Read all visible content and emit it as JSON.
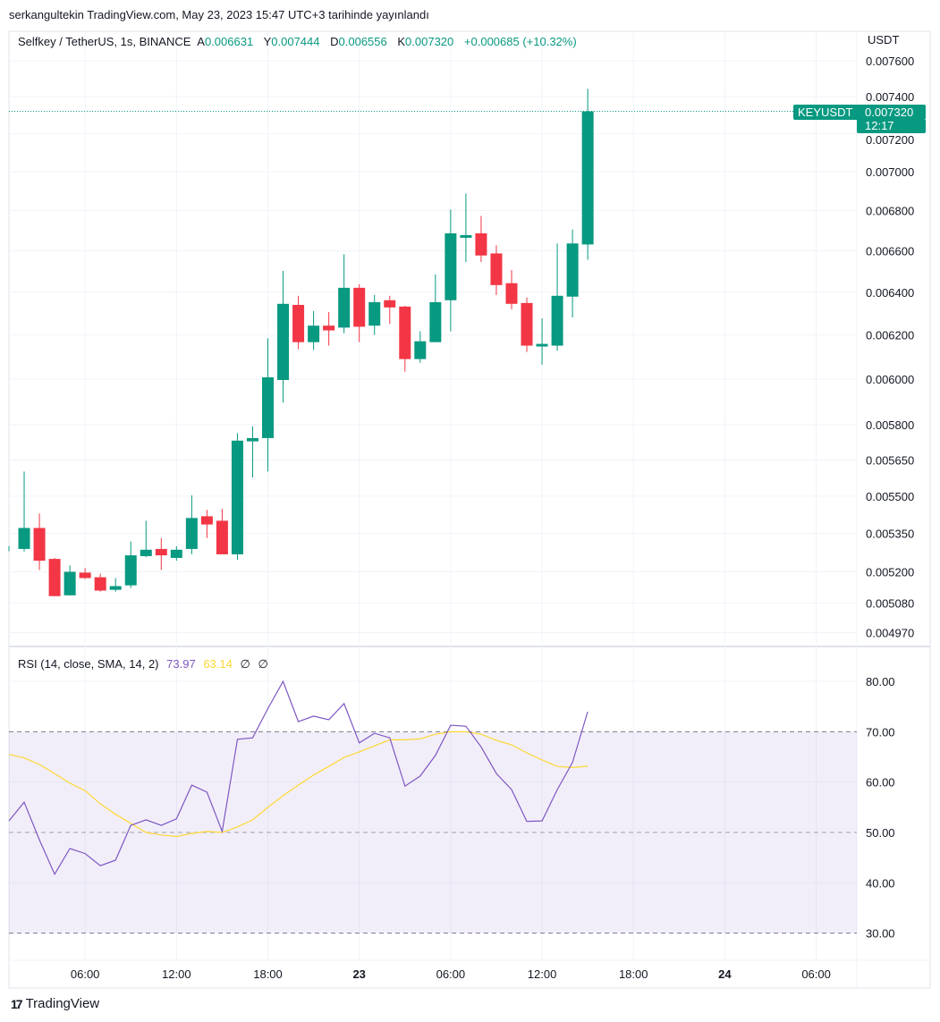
{
  "published_line": "serkangultekin TradingView.com, May 23, 2023 15:47 UTC+3 tarihinde yayınlandı",
  "legend": {
    "symbol": "Selfkey / TetherUS, 1s, BINANCE",
    "open_label": "A",
    "open": "0.006631",
    "high_label": "Y",
    "high": "0.007444",
    "low_label": "D",
    "low": "0.006556",
    "close_label": "K",
    "close": "0.007320",
    "change": "+0.000685 (+10.32%)"
  },
  "price_axis": {
    "unit": "USDT",
    "ticks": [
      "0.007600",
      "0.007400",
      "0.007200",
      "0.007000",
      "0.006800",
      "0.006600",
      "0.006400",
      "0.006200",
      "0.006000",
      "0.005800",
      "0.005650",
      "0.005500",
      "0.005350",
      "0.005200",
      "0.005080",
      "0.004970"
    ]
  },
  "last_price_tag": {
    "symbol": "KEYUSDT",
    "price": "0.007320",
    "countdown": "12:17"
  },
  "rsi": {
    "title": "RSI (14, close, SMA, 14, 2)",
    "value": "73.97",
    "sma_value": "63.14",
    "na1": "∅",
    "na2": "∅",
    "ticks": [
      "80.00",
      "70.00",
      "60.00",
      "50.00",
      "40.00",
      "30.00"
    ],
    "upper_band": 70,
    "middle_band": 50,
    "lower_band": 30
  },
  "time_axis": {
    "labels": [
      {
        "text": "06:00",
        "bold": false,
        "index": 5
      },
      {
        "text": "12:00",
        "bold": false,
        "index": 11
      },
      {
        "text": "18:00",
        "bold": false,
        "index": 17
      },
      {
        "text": "23",
        "bold": true,
        "index": 23
      },
      {
        "text": "06:00",
        "bold": false,
        "index": 29
      },
      {
        "text": "12:00",
        "bold": false,
        "index": 35
      },
      {
        "text": "18:00",
        "bold": false,
        "index": 41
      },
      {
        "text": "24",
        "bold": true,
        "index": 47
      },
      {
        "text": "06:00",
        "bold": false,
        "index": 53
      }
    ]
  },
  "colors": {
    "up": "#089981",
    "down": "#f23645",
    "rsi": "#7e57c2",
    "rsi_sma": "#fdd835",
    "band_fill": "rgba(126,87,194,0.1)"
  },
  "brand": "TradingView",
  "chart_data": {
    "type": "candlestick",
    "title": "Selfkey / TetherUS, 1s, BINANCE",
    "ylabel": "USDT",
    "ylim": [
      0.00497,
      0.0076
    ],
    "scale": "log",
    "ohlc": [
      [
        0.00528,
        0.0053,
        0.00528,
        0.0053
      ],
      [
        0.005289,
        0.005602,
        0.005279,
        0.005372
      ],
      [
        0.005372,
        0.00543,
        0.005207,
        0.005243
      ],
      [
        0.00525,
        0.005254,
        0.005107,
        0.005107
      ],
      [
        0.00511,
        0.005225,
        0.00511,
        0.0052
      ],
      [
        0.005197,
        0.005214,
        0.005172,
        0.005176
      ],
      [
        0.005179,
        0.005193,
        0.005124,
        0.005128
      ],
      [
        0.005131,
        0.005176,
        0.005124,
        0.005145
      ],
      [
        0.005148,
        0.005318,
        0.005138,
        0.005264
      ],
      [
        0.005261,
        0.005401,
        0.005257,
        0.005286
      ],
      [
        0.005289,
        0.005332,
        0.005207,
        0.005264
      ],
      [
        0.005254,
        0.0053,
        0.005243,
        0.005286
      ],
      [
        0.005289,
        0.005504,
        0.005268,
        0.005412
      ],
      [
        0.005419,
        0.005445,
        0.005332,
        0.005386
      ],
      [
        0.005401,
        0.005449,
        0.005268,
        0.005268
      ],
      [
        0.005268,
        0.005764,
        0.005246,
        0.005732
      ],
      [
        0.005729,
        0.005793,
        0.005577,
        0.005743
      ],
      [
        0.005743,
        0.006184,
        0.005602,
        0.006008
      ],
      [
        0.005996,
        0.006502,
        0.005896,
        0.006345
      ],
      [
        0.00634,
        0.006383,
        0.006135,
        0.006167
      ],
      [
        0.006167,
        0.006311,
        0.006131,
        0.006243
      ],
      [
        0.006243,
        0.006306,
        0.006151,
        0.006221
      ],
      [
        0.006234,
        0.006583,
        0.006208,
        0.006421
      ],
      [
        0.006421,
        0.006438,
        0.006167,
        0.006238
      ],
      [
        0.006243,
        0.006387,
        0.0062,
        0.006353
      ],
      [
        0.006362,
        0.006383,
        0.006251,
        0.006328
      ],
      [
        0.006332,
        0.006336,
        0.006033,
        0.00609
      ],
      [
        0.00609,
        0.006217,
        0.006073,
        0.006171
      ],
      [
        0.006167,
        0.006485,
        0.006167,
        0.006353
      ],
      [
        0.006362,
        0.006805,
        0.006217,
        0.006686
      ],
      [
        0.006664,
        0.006886,
        0.006545,
        0.006677
      ],
      [
        0.006686,
        0.006773,
        0.006545,
        0.006577
      ],
      [
        0.006587,
        0.006627,
        0.006387,
        0.006434
      ],
      [
        0.006443,
        0.006506,
        0.006319,
        0.006345
      ],
      [
        0.006349,
        0.006375,
        0.006122,
        0.006151
      ],
      [
        0.006147,
        0.006277,
        0.006065,
        0.006159
      ],
      [
        0.006151,
        0.006636,
        0.006127,
        0.006383
      ],
      [
        0.006379,
        0.006705,
        0.006281,
        0.006636
      ],
      [
        0.006631,
        0.007444,
        0.006556,
        0.00732
      ]
    ],
    "rsi_values": [
      52.3,
      56.0,
      48.5,
      41.7,
      46.8,
      45.8,
      43.4,
      44.5,
      51.4,
      52.5,
      51.4,
      52.7,
      59.4,
      58.0,
      50.2,
      68.5,
      68.8,
      74.6,
      80.0,
      72.0,
      73.1,
      72.4,
      75.6,
      67.8,
      69.7,
      68.8,
      59.2,
      61.2,
      65.3,
      71.3,
      71.1,
      67.0,
      61.7,
      58.5,
      52.2,
      52.3,
      58.5,
      63.9,
      73.97
    ],
    "rsi_sma_values": [
      65.5,
      64.8,
      63.5,
      61.7,
      59.8,
      58.3,
      55.7,
      53.6,
      51.8,
      50.0,
      49.5,
      49.2,
      49.8,
      50.2,
      50.0,
      51.1,
      52.5,
      55.0,
      57.3,
      59.4,
      61.4,
      63.1,
      64.9,
      66.0,
      67.2,
      68.4,
      68.4,
      68.6,
      69.5,
      70.0,
      70.0,
      69.5,
      68.3,
      67.4,
      65.8,
      64.4,
      63.1,
      62.9,
      63.14
    ],
    "rsi_ylim": [
      30,
      80
    ]
  }
}
